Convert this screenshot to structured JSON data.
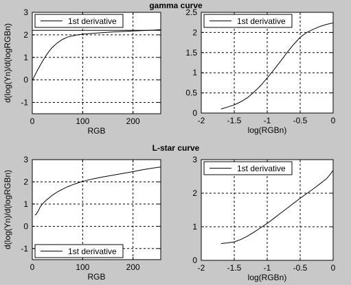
{
  "figure": {
    "background": "#c8c8c8",
    "plot_background": "#ffffff",
    "line_color": "#000000"
  },
  "chart_data": [
    {
      "id": "gamma-rgb",
      "type": "line",
      "title": "gamma curve",
      "xlabel": "RGB",
      "ylabel": "d(log(Yn)/d(logRGBn)",
      "xlim": [
        0,
        255
      ],
      "ylim": [
        -1.5,
        3
      ],
      "xticks": [
        0,
        100,
        200
      ],
      "yticks": [
        -1,
        0,
        1,
        2,
        3
      ],
      "xtick_labels": [
        "0",
        "100",
        "200"
      ],
      "ytick_labels": [
        "-1",
        "0",
        "1",
        "2",
        "3"
      ],
      "grid": true,
      "legend": {
        "position": "top-left",
        "entries": [
          "1st derivative"
        ]
      },
      "series": [
        {
          "name": "1st derivative",
          "x": [
            0,
            5,
            10,
            15,
            20,
            25,
            30,
            35,
            40,
            50,
            60,
            70,
            80,
            90,
            100,
            120,
            140,
            160,
            180,
            200,
            220,
            240,
            255
          ],
          "y": [
            -0.02,
            0.2,
            0.42,
            0.62,
            0.82,
            1.0,
            1.17,
            1.32,
            1.45,
            1.65,
            1.8,
            1.9,
            1.96,
            2.0,
            2.03,
            2.07,
            2.1,
            2.13,
            2.15,
            2.17,
            2.19,
            2.21,
            2.23
          ]
        },
        {
          "name": "",
          "x": [
            0,
            255
          ],
          "y": [
            2.2,
            2.2
          ]
        }
      ]
    },
    {
      "id": "gamma-log",
      "type": "line",
      "title": "",
      "xlabel": "log(RGBn)",
      "ylabel": "",
      "xlim": [
        -2,
        0
      ],
      "ylim": [
        0,
        2.5
      ],
      "xticks": [
        -2,
        -1.5,
        -1,
        -0.5,
        0
      ],
      "yticks": [
        0,
        0.5,
        1,
        1.5,
        2,
        2.5
      ],
      "xtick_labels": [
        "-2",
        "-1.5",
        "-1",
        "-0.5",
        "0"
      ],
      "ytick_labels": [
        "0",
        "0.5",
        "1",
        "1.5",
        "2",
        "2.5"
      ],
      "grid": true,
      "legend": {
        "position": "top-left",
        "entries": [
          "1st derivative"
        ]
      },
      "series": [
        {
          "name": "1st derivative",
          "x": [
            -1.7,
            -1.6,
            -1.5,
            -1.4,
            -1.3,
            -1.2,
            -1.1,
            -1.0,
            -0.9,
            -0.8,
            -0.7,
            -0.6,
            -0.5,
            -0.4,
            -0.3,
            -0.2,
            -0.1,
            0
          ],
          "y": [
            0.1,
            0.15,
            0.2,
            0.28,
            0.38,
            0.52,
            0.68,
            0.87,
            1.07,
            1.28,
            1.5,
            1.7,
            1.88,
            2.0,
            2.08,
            2.15,
            2.2,
            2.24
          ]
        }
      ]
    },
    {
      "id": "lstar-rgb",
      "type": "line",
      "title": "L-star curve",
      "xlabel": "RGB",
      "ylabel": "d(log(Yn)/d(logRGBn)",
      "xlim": [
        0,
        255
      ],
      "ylim": [
        -1.5,
        3
      ],
      "xticks": [
        0,
        100,
        200
      ],
      "yticks": [
        -1,
        0,
        1,
        2,
        3
      ],
      "xtick_labels": [
        "0",
        "100",
        "200"
      ],
      "ytick_labels": [
        "-1",
        "0",
        "1",
        "2",
        "3"
      ],
      "grid": true,
      "legend": {
        "position": "bottom-left",
        "entries": [
          "1st derivative"
        ]
      },
      "series": [
        {
          "name": "1st derivative",
          "x": [
            5,
            8,
            12,
            16,
            20,
            25,
            30,
            40,
            50,
            60,
            70,
            80,
            90,
            100,
            120,
            140,
            160,
            180,
            200,
            220,
            240,
            255
          ],
          "y": [
            0.5,
            0.55,
            0.7,
            0.88,
            1.0,
            1.12,
            1.22,
            1.4,
            1.55,
            1.67,
            1.78,
            1.87,
            1.95,
            2.02,
            2.13,
            2.22,
            2.3,
            2.38,
            2.46,
            2.55,
            2.62,
            2.67
          ]
        }
      ]
    },
    {
      "id": "lstar-log",
      "type": "line",
      "title": "",
      "xlabel": "log(RGBn)",
      "ylabel": "",
      "xlim": [
        -2,
        0
      ],
      "ylim": [
        0,
        3
      ],
      "xticks": [
        -2,
        -1.5,
        -1,
        -0.5,
        0
      ],
      "yticks": [
        0,
        1,
        2,
        3
      ],
      "xtick_labels": [
        "-2",
        "-1.5",
        "-1",
        "-0.5",
        "0"
      ],
      "ytick_labels": [
        "0",
        "1",
        "2",
        "3"
      ],
      "grid": true,
      "legend": {
        "position": "top-left",
        "entries": [
          "1st derivative"
        ]
      },
      "series": [
        {
          "name": "1st derivative",
          "x": [
            -1.7,
            -1.6,
            -1.5,
            -1.4,
            -1.3,
            -1.2,
            -1.1,
            -1.0,
            -0.9,
            -0.8,
            -0.7,
            -0.6,
            -0.5,
            -0.4,
            -0.3,
            -0.2,
            -0.1,
            -0.05,
            0
          ],
          "y": [
            0.5,
            0.52,
            0.55,
            0.62,
            0.72,
            0.84,
            0.97,
            1.1,
            1.25,
            1.4,
            1.55,
            1.7,
            1.85,
            1.99,
            2.13,
            2.28,
            2.43,
            2.55,
            2.68
          ]
        }
      ]
    }
  ]
}
